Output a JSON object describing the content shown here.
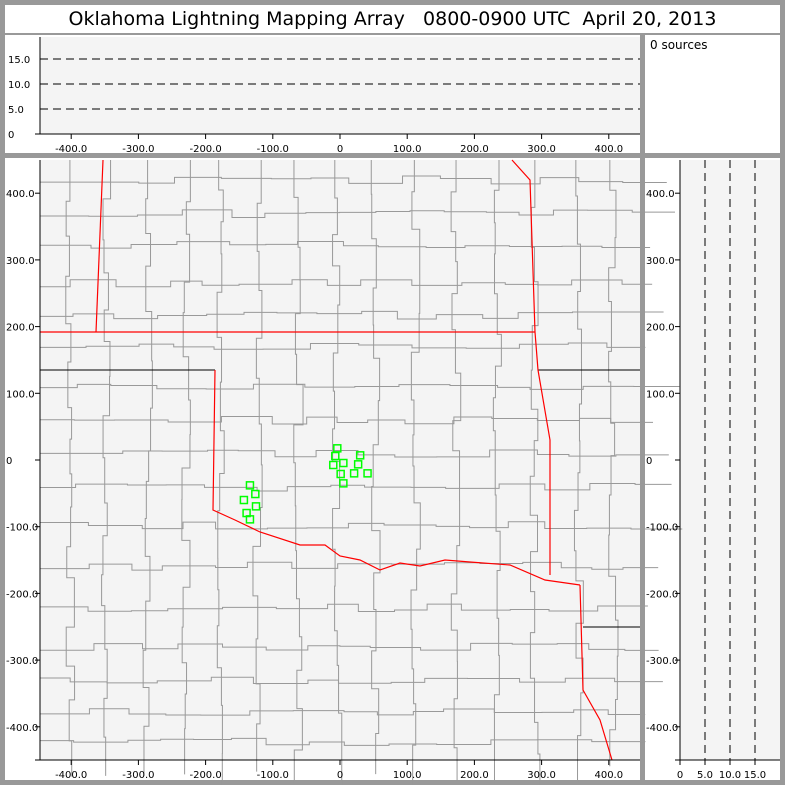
{
  "title": "Oklahoma Lightning Mapping Array   0800-0900 UTC  April 20, 2013",
  "sources_label": "0 sources",
  "colors": {
    "point": "#00ff00",
    "state_border": "#ff0000",
    "county": "#999999",
    "plot_bg": "#f4f4f4",
    "frame": "#999999"
  },
  "plan_view": {
    "x_ticks": [
      "-400.0",
      "-300.0",
      "-200.0",
      "-100.0",
      "0",
      "100.0",
      "200.0",
      "300.0",
      "400.0"
    ],
    "y_ticks": [
      "400.0",
      "300.0",
      "200.0",
      "100.0",
      "0",
      "-100.0",
      "-200.0",
      "-300.0",
      "-400.0"
    ],
    "xlim": [
      -450,
      450
    ],
    "ylim": [
      -450,
      450
    ],
    "points": [
      [
        -4,
        17.5
      ],
      [
        -7,
        6
      ],
      [
        30,
        7
      ],
      [
        -10,
        -7.5
      ],
      [
        5,
        -4.5
      ],
      [
        27,
        -6.5
      ],
      [
        1,
        -21
      ],
      [
        21,
        -20
      ],
      [
        41,
        -20
      ],
      [
        5,
        -35
      ],
      [
        -134,
        -38
      ],
      [
        -126,
        -51
      ],
      [
        -143,
        -60
      ],
      [
        -125,
        -69.5
      ],
      [
        -139,
        -79.5
      ],
      [
        -134,
        -89
      ]
    ]
  },
  "alt_lon": {
    "y_ticks": [
      "0",
      "5.0",
      "10.0",
      "15.0"
    ],
    "x_ticks": [
      "-400.0",
      "-300.0",
      "-200.0",
      "-100.0",
      "0",
      "100.0",
      "200.0",
      "300.0",
      "400.0"
    ],
    "ylim": [
      0,
      20
    ],
    "dashed": [
      5,
      10,
      15
    ]
  },
  "alt_lat": {
    "x_ticks": [
      "0",
      "5.0",
      "10.0",
      "15.0"
    ],
    "y_ticks": [
      "400.0",
      "300.0",
      "200.0",
      "100.0",
      "0",
      "-100.0",
      "-200.0",
      "-300.0",
      "-400.0"
    ],
    "xlim": [
      0,
      20
    ],
    "dashed": [
      5,
      10,
      15
    ]
  }
}
